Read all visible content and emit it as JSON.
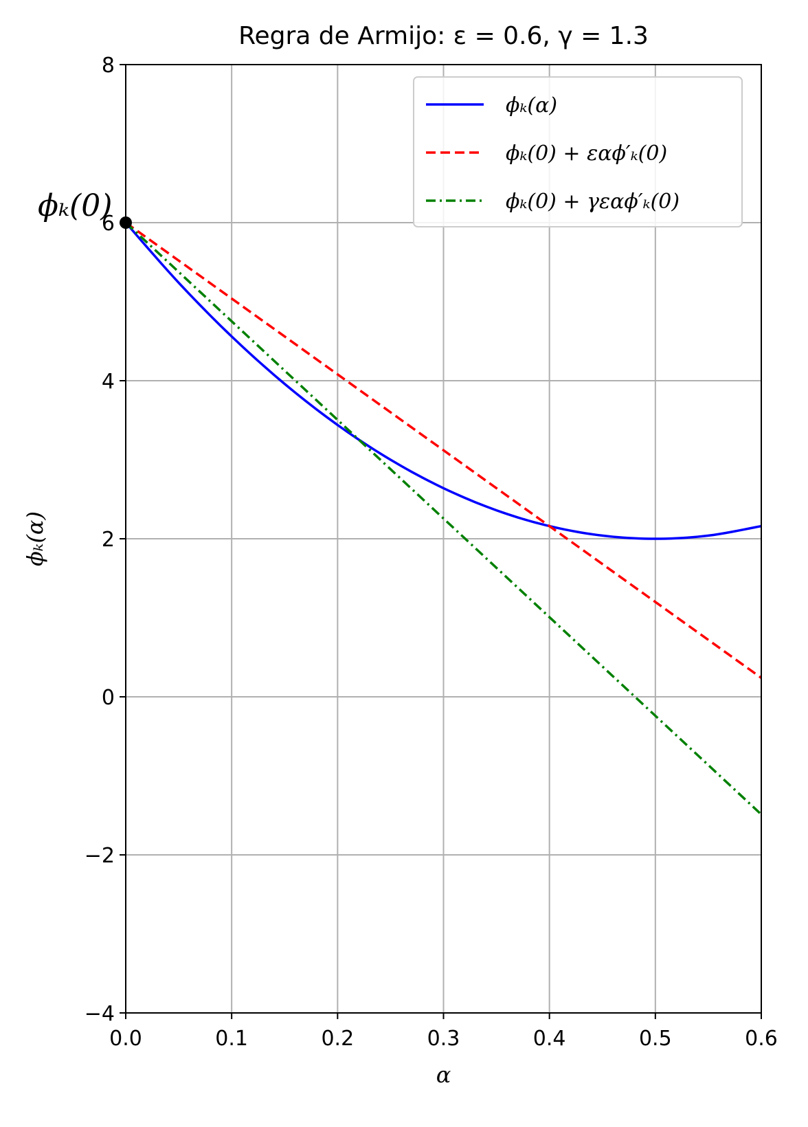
{
  "chart_data": {
    "type": "line",
    "title": "Regra de Armijo: ε = 0.6, γ = 1.3",
    "xlabel": "α",
    "ylabel": "ϕₖ(α)",
    "xlim": [
      0.0,
      0.6
    ],
    "ylim": [
      -4,
      8
    ],
    "xticks": [
      0.0,
      0.1,
      0.2,
      0.3,
      0.4,
      0.5,
      0.6
    ],
    "xtick_labels": [
      "0.0",
      "0.1",
      "0.2",
      "0.3",
      "0.4",
      "0.5",
      "0.6"
    ],
    "yticks": [
      -4,
      -2,
      0,
      2,
      4,
      6,
      8
    ],
    "ytick_labels": [
      "−4",
      "−2",
      "0",
      "2",
      "4",
      "6",
      "8"
    ],
    "grid": true,
    "legend_position": "top-right",
    "series": [
      {
        "name": "ϕₖ(α)",
        "color": "#0000ff",
        "style": "solid",
        "x": [
          0.0,
          0.05,
          0.1,
          0.15,
          0.2,
          0.25,
          0.3,
          0.35,
          0.4,
          0.45,
          0.5,
          0.55,
          0.6
        ],
        "y": [
          6.0,
          5.24,
          4.56,
          3.96,
          3.44,
          3.0,
          2.64,
          2.36,
          2.16,
          2.04,
          2.0,
          2.04,
          2.16
        ]
      },
      {
        "name": "ϕₖ(0) + εαϕ′ₖ(0)",
        "color": "#ff0000",
        "style": "dashed",
        "x": [
          0.0,
          0.6
        ],
        "y": [
          6.0,
          0.24
        ]
      },
      {
        "name": "ϕₖ(0) + γεαϕ′ₖ(0)",
        "color": "#008000",
        "style": "dashdot",
        "x": [
          0.0,
          0.6
        ],
        "y": [
          6.0,
          -1.488
        ]
      }
    ],
    "annotations": [
      {
        "text": "ϕₖ(0)",
        "x": 0.0,
        "y": 6.0,
        "marker_color": "#000000"
      }
    ]
  }
}
